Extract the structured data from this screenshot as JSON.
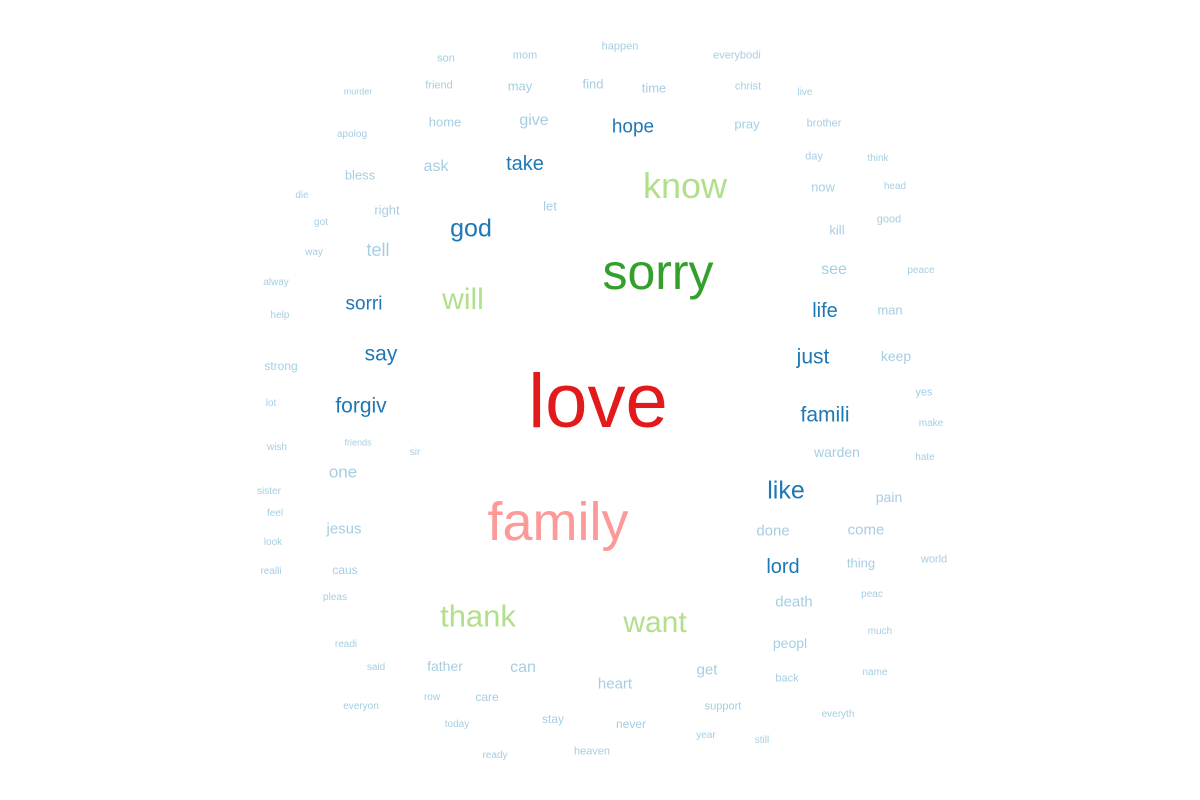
{
  "palette": {
    "tier1": "#e31a1c",
    "tier2": "#33a02c",
    "tier3": "#fb9a99",
    "tier4": "#b2df8a",
    "tier5": "#1f78b4",
    "tier6": "#a6cee3"
  },
  "words": [
    {
      "text": "love",
      "color": "tier1"
    },
    {
      "text": "sorry",
      "color": "tier2"
    },
    {
      "text": "family",
      "color": "tier3"
    },
    {
      "text": "know",
      "color": "tier4"
    },
    {
      "text": "will",
      "color": "tier4"
    },
    {
      "text": "thank",
      "color": "tier4"
    },
    {
      "text": "want",
      "color": "tier4"
    },
    {
      "text": "god",
      "color": "tier5"
    },
    {
      "text": "like",
      "color": "tier5"
    },
    {
      "text": "hope",
      "color": "tier5"
    },
    {
      "text": "take",
      "color": "tier5"
    },
    {
      "text": "sorri",
      "color": "tier5"
    },
    {
      "text": "say",
      "color": "tier5"
    },
    {
      "text": "forgiv",
      "color": "tier5"
    },
    {
      "text": "just",
      "color": "tier5"
    },
    {
      "text": "famili",
      "color": "tier5"
    },
    {
      "text": "life",
      "color": "tier5"
    },
    {
      "text": "lord",
      "color": "tier5"
    },
    {
      "text": "tell",
      "color": "tier6"
    },
    {
      "text": "one",
      "color": "tier6"
    },
    {
      "text": "see",
      "color": "tier6"
    },
    {
      "text": "give",
      "color": "tier6"
    },
    {
      "text": "ask",
      "color": "tier6"
    },
    {
      "text": "jesus",
      "color": "tier6"
    },
    {
      "text": "heart",
      "color": "tier6"
    },
    {
      "text": "can",
      "color": "tier6"
    },
    {
      "text": "father",
      "color": "tier6"
    },
    {
      "text": "get",
      "color": "tier6"
    },
    {
      "text": "done",
      "color": "tier6"
    },
    {
      "text": "come",
      "color": "tier6"
    },
    {
      "text": "death",
      "color": "tier6"
    },
    {
      "text": "peopl",
      "color": "tier6"
    },
    {
      "text": "warden",
      "color": "tier6"
    },
    {
      "text": "keep",
      "color": "tier6"
    },
    {
      "text": "pain",
      "color": "tier6"
    },
    {
      "text": "man",
      "color": "tier6"
    },
    {
      "text": "thing",
      "color": "tier6"
    },
    {
      "text": "kill",
      "color": "tier6"
    },
    {
      "text": "now",
      "color": "tier6"
    },
    {
      "text": "pray",
      "color": "tier6"
    },
    {
      "text": "time",
      "color": "tier6"
    },
    {
      "text": "find",
      "color": "tier6"
    },
    {
      "text": "may",
      "color": "tier6"
    },
    {
      "text": "home",
      "color": "tier6"
    },
    {
      "text": "bless",
      "color": "tier6"
    },
    {
      "text": "right",
      "color": "tier6"
    },
    {
      "text": "let",
      "color": "tier6"
    },
    {
      "text": "strong",
      "color": "tier6"
    },
    {
      "text": "caus",
      "color": "tier6"
    },
    {
      "text": "stay",
      "color": "tier6"
    },
    {
      "text": "never",
      "color": "tier6"
    },
    {
      "text": "care",
      "color": "tier6"
    },
    {
      "text": "back",
      "color": "tier6"
    },
    {
      "text": "support",
      "color": "tier6"
    },
    {
      "text": "heaven",
      "color": "tier6"
    },
    {
      "text": "christ",
      "color": "tier6"
    },
    {
      "text": "mom",
      "color": "tier6"
    },
    {
      "text": "friend",
      "color": "tier6"
    },
    {
      "text": "son",
      "color": "tier6"
    },
    {
      "text": "happen",
      "color": "tier6"
    },
    {
      "text": "everybodi",
      "color": "tier6"
    },
    {
      "text": "live",
      "color": "tier6"
    },
    {
      "text": "brother",
      "color": "tier6"
    },
    {
      "text": "day",
      "color": "tier6"
    },
    {
      "text": "think",
      "color": "tier6"
    },
    {
      "text": "head",
      "color": "tier6"
    },
    {
      "text": "good",
      "color": "tier6"
    },
    {
      "text": "peace",
      "color": "tier6"
    },
    {
      "text": "yes",
      "color": "tier6"
    },
    {
      "text": "make",
      "color": "tier6"
    },
    {
      "text": "hate",
      "color": "tier6"
    },
    {
      "text": "world",
      "color": "tier6"
    },
    {
      "text": "peac",
      "color": "tier6"
    },
    {
      "text": "much",
      "color": "tier6"
    },
    {
      "text": "name",
      "color": "tier6"
    },
    {
      "text": "everyth",
      "color": "tier6"
    },
    {
      "text": "still",
      "color": "tier6"
    },
    {
      "text": "year",
      "color": "tier6"
    },
    {
      "text": "ready",
      "color": "tier6"
    },
    {
      "text": "today",
      "color": "tier6"
    },
    {
      "text": "row",
      "color": "tier6"
    },
    {
      "text": "said",
      "color": "tier6"
    },
    {
      "text": "everyon",
      "color": "tier6"
    },
    {
      "text": "readi",
      "color": "tier6"
    },
    {
      "text": "pleas",
      "color": "tier6"
    },
    {
      "text": "realli",
      "color": "tier6"
    },
    {
      "text": "look",
      "color": "tier6"
    },
    {
      "text": "feel",
      "color": "tier6"
    },
    {
      "text": "sister",
      "color": "tier6"
    },
    {
      "text": "wish",
      "color": "tier6"
    },
    {
      "text": "friends",
      "color": "tier6"
    },
    {
      "text": "sir",
      "color": "tier6"
    },
    {
      "text": "lot",
      "color": "tier6"
    },
    {
      "text": "help",
      "color": "tier6"
    },
    {
      "text": "alway",
      "color": "tier6"
    },
    {
      "text": "way",
      "color": "tier6"
    },
    {
      "text": "got",
      "color": "tier6"
    },
    {
      "text": "die",
      "color": "tier6"
    },
    {
      "text": "apolog",
      "color": "tier6"
    },
    {
      "text": "murder",
      "color": "tier6"
    }
  ]
}
